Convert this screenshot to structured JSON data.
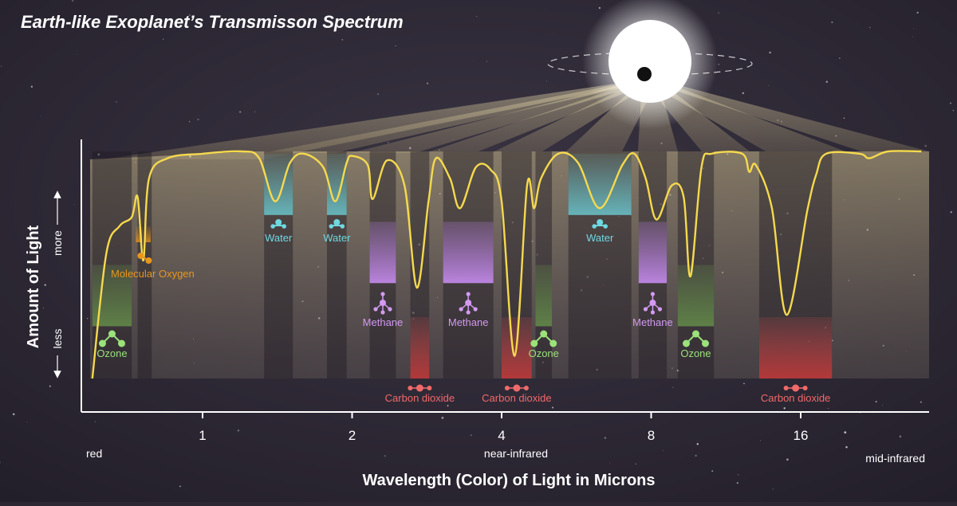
{
  "title": "Earth-like Exoplanet’s Transmisson Spectrum",
  "chart_data": {
    "type": "line",
    "title": "Earth-like Exoplanet’s Transmisson Spectrum",
    "xlabel": "Wavelength (Color) of Light in Microns",
    "ylabel": "Amount of Light",
    "x_scale": "log",
    "x_ticks": [
      "1",
      "2",
      "4",
      "8",
      "16"
    ],
    "x_tick_values": [
      1,
      2,
      4,
      8,
      16
    ],
    "y_more_label": "more",
    "y_less_label": "less",
    "regions": [
      {
        "label": "red",
        "position": "left"
      },
      {
        "label": "near-infrared",
        "position": "center"
      },
      {
        "label": "mid-infrared",
        "position": "right"
      }
    ],
    "absorption_features": [
      {
        "molecule": "Molecular Oxygen",
        "wavelength": 0.76,
        "color": "#e8961e"
      },
      {
        "molecule": "Ozone",
        "wavelength": 0.6,
        "color": "#9be27a"
      },
      {
        "molecule": "Water",
        "wavelength": 1.4,
        "color": "#6fd8e0"
      },
      {
        "molecule": "Water",
        "wavelength": 1.9,
        "color": "#6fd8e0"
      },
      {
        "molecule": "Methane",
        "wavelength": 2.3,
        "color": "#d29af0"
      },
      {
        "molecule": "Carbon dioxide",
        "wavelength": 2.7,
        "color": "#f06a6a"
      },
      {
        "molecule": "Methane",
        "wavelength": 3.3,
        "color": "#d29af0"
      },
      {
        "molecule": "Carbon dioxide",
        "wavelength": 4.3,
        "color": "#f06a6a"
      },
      {
        "molecule": "Ozone",
        "wavelength": 4.8,
        "color": "#9be27a"
      },
      {
        "molecule": "Water",
        "wavelength": 6.3,
        "color": "#6fd8e0"
      },
      {
        "molecule": "Methane",
        "wavelength": 7.7,
        "color": "#d29af0"
      },
      {
        "molecule": "Ozone",
        "wavelength": 9.6,
        "color": "#9be27a"
      },
      {
        "molecule": "Carbon dioxide",
        "wavelength": 15,
        "color": "#f06a6a"
      }
    ],
    "spectrum": [
      [
        0.6,
        0.0
      ],
      [
        0.64,
        0.55
      ],
      [
        0.68,
        0.67
      ],
      [
        0.72,
        0.71
      ],
      [
        0.74,
        0.8
      ],
      [
        0.76,
        0.52
      ],
      [
        0.78,
        0.88
      ],
      [
        0.85,
        0.97
      ],
      [
        1.0,
        0.99
      ],
      [
        1.2,
        1.0
      ],
      [
        1.3,
        0.97
      ],
      [
        1.4,
        0.78
      ],
      [
        1.5,
        0.95
      ],
      [
        1.6,
        0.99
      ],
      [
        1.75,
        0.93
      ],
      [
        1.85,
        0.78
      ],
      [
        1.95,
        0.95
      ],
      [
        2.0,
        0.98
      ],
      [
        2.15,
        0.94
      ],
      [
        2.2,
        0.79
      ],
      [
        2.35,
        0.96
      ],
      [
        2.55,
        0.85
      ],
      [
        2.7,
        0.4
      ],
      [
        2.85,
        0.78
      ],
      [
        2.95,
        0.97
      ],
      [
        3.15,
        0.88
      ],
      [
        3.3,
        0.75
      ],
      [
        3.55,
        0.93
      ],
      [
        3.8,
        0.92
      ],
      [
        4.0,
        0.78
      ],
      [
        4.25,
        0.1
      ],
      [
        4.5,
        0.85
      ],
      [
        4.65,
        0.75
      ],
      [
        4.8,
        0.88
      ],
      [
        5.2,
        0.99
      ],
      [
        5.7,
        0.95
      ],
      [
        6.3,
        0.75
      ],
      [
        7.0,
        0.94
      ],
      [
        7.4,
        0.99
      ],
      [
        7.8,
        0.88
      ],
      [
        8.2,
        0.7
      ],
      [
        8.8,
        0.85
      ],
      [
        9.3,
        0.8
      ],
      [
        9.6,
        0.45
      ],
      [
        10.1,
        0.93
      ],
      [
        10.6,
        0.99
      ],
      [
        12.2,
        0.99
      ],
      [
        12.6,
        0.91
      ],
      [
        13.0,
        0.94
      ],
      [
        14.0,
        0.75
      ],
      [
        15.0,
        0.28
      ],
      [
        16.5,
        0.74
      ],
      [
        17.2,
        0.9
      ],
      [
        18.0,
        0.99
      ],
      [
        21.0,
        0.99
      ],
      [
        22.0,
        0.97
      ],
      [
        24.0,
        1.0
      ],
      [
        28.0,
        1.0
      ]
    ],
    "line_color": "#f5d94e"
  },
  "colors": {
    "background": "#2c2733",
    "spectrum_line": "#f5d94e",
    "text": "#ffffff",
    "oxygen": "#e8961e",
    "ozone": "#9be27a",
    "water": "#6fd8e0",
    "methane": "#d29af0",
    "co2": "#f06a6a"
  }
}
